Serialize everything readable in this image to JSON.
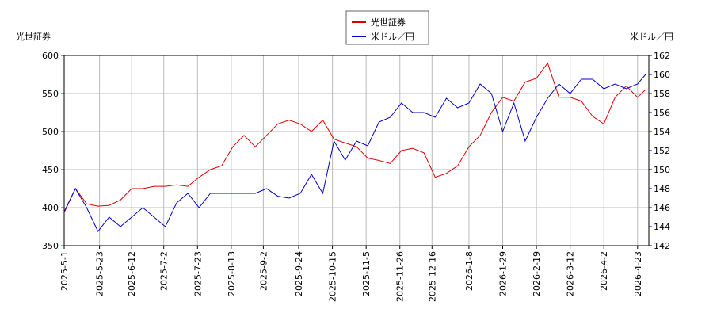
{
  "chart_data": {
    "type": "line",
    "y_label": "光世証券",
    "y2_label": "米ドル／円",
    "x": [
      "2025-5-1",
      "2025-5-8",
      "2025-5-15",
      "2025-5-22",
      "2025-5-29",
      "2025-6-5",
      "2025-6-12",
      "2025-6-19",
      "2025-6-26",
      "2025-7-3",
      "2025-7-10",
      "2025-7-17",
      "2025-7-24",
      "2025-7-31",
      "2025-8-7",
      "2025-8-14",
      "2025-8-21",
      "2025-8-28",
      "2025-9-4",
      "2025-9-11",
      "2025-9-18",
      "2025-9-25",
      "2025-10-2",
      "2025-10-9",
      "2025-10-16",
      "2025-10-23",
      "2025-10-30",
      "2025-11-6",
      "2025-11-13",
      "2025-11-20",
      "2025-11-27",
      "2025-12-4",
      "2025-12-11",
      "2025-12-18",
      "2025-12-25",
      "2026-1-1",
      "2026-1-8",
      "2026-1-15",
      "2026-1-22",
      "2026-1-29",
      "2026-2-5",
      "2026-2-12",
      "2026-2-19",
      "2026-2-26",
      "2026-3-5",
      "2026-3-12",
      "2026-3-19",
      "2026-3-26",
      "2026-4-2",
      "2026-4-9",
      "2026-4-16",
      "2026-4-23",
      "2026-4-28"
    ],
    "series": [
      {
        "name": "光世証券",
        "color": "#dd0000",
        "axis": "y",
        "values": [
          395,
          425,
          405,
          402,
          403,
          410,
          425,
          425,
          428,
          428,
          430,
          428,
          440,
          450,
          455,
          480,
          495,
          480,
          495,
          510,
          515,
          510,
          500,
          515,
          490,
          485,
          480,
          465,
          462,
          458,
          475,
          478,
          472,
          440,
          445,
          455,
          480,
          495,
          525,
          545,
          540,
          565,
          570,
          590,
          545,
          545,
          540,
          520,
          510,
          545,
          560,
          545,
          555
        ]
      },
      {
        "name": "米ドル／円",
        "color": "#0000cc",
        "axis": "y2",
        "values": [
          145.5,
          148,
          146,
          143.5,
          145,
          144,
          145,
          146,
          145,
          144,
          146.5,
          147.5,
          146,
          147.5,
          147.5,
          147.5,
          147.5,
          147.5,
          148,
          147.2,
          147,
          147.5,
          149.5,
          147.5,
          153,
          151,
          153,
          152.5,
          155,
          155.5,
          157,
          156,
          156,
          155.5,
          157.5,
          156.5,
          157,
          159,
          158,
          154,
          157,
          153,
          155.5,
          157.5,
          159,
          158,
          159.5,
          159.5,
          158.5,
          159,
          158.5,
          159,
          160
        ]
      }
    ],
    "xlim": [
      "2025-5-1",
      "2026-4-30"
    ],
    "xticks": [
      "2025-5-1",
      "2025-5-23",
      "2025-6-12",
      "2025-7-2",
      "2025-7-23",
      "2025-8-13",
      "2025-9-2",
      "2025-9-24",
      "2025-10-15",
      "2025-11-5",
      "2025-11-26",
      "2025-12-16",
      "2026-1-8",
      "2026-1-29",
      "2026-2-19",
      "2026-3-12",
      "2026-4-2",
      "2026-4-23"
    ],
    "ylim": [
      350,
      600
    ],
    "yticks": [
      350,
      400,
      450,
      500,
      550,
      600
    ],
    "y2lim": [
      142,
      162
    ],
    "y2ticks": [
      142,
      144,
      146,
      148,
      150,
      152,
      154,
      156,
      158,
      160,
      162
    ],
    "grid": true
  }
}
